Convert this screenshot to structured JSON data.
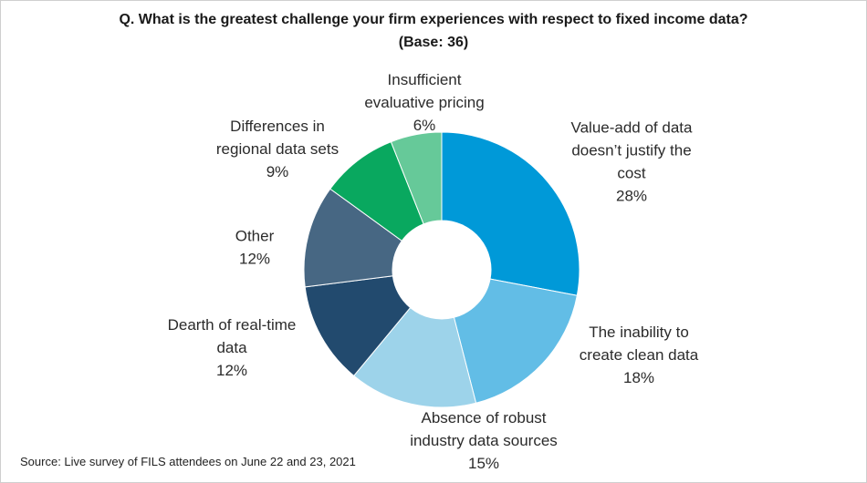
{
  "chart_data": {
    "type": "pie",
    "title": "Q. What is the greatest challenge your firm experiences with respect to fixed income data?",
    "subtitle": "(Base: 36)",
    "slices": [
      {
        "label_lines": [
          "Value-add of data",
          "doesn’t justify the",
          "cost"
        ],
        "pct_label": "28%",
        "value": 28,
        "color": "#0099d8"
      },
      {
        "label_lines": [
          "The inability to",
          "create clean data"
        ],
        "pct_label": "18%",
        "value": 18,
        "color": "#62bde6"
      },
      {
        "label_lines": [
          "Absence of robust",
          "industry data sources"
        ],
        "pct_label": "15%",
        "value": 15,
        "color": "#9dd3ea"
      },
      {
        "label_lines": [
          "Dearth of real-time",
          "data"
        ],
        "pct_label": "12%",
        "value": 12,
        "color": "#224a6e"
      },
      {
        "label_lines": [
          "Other"
        ],
        "pct_label": "12%",
        "value": 12,
        "color": "#476783"
      },
      {
        "label_lines": [
          "Differences in",
          "regional data sets"
        ],
        "pct_label": "9%",
        "value": 9,
        "color": "#09a85f"
      },
      {
        "label_lines": [
          "Insufficient",
          "evaluative pricing"
        ],
        "pct_label": "6%",
        "value": 6,
        "color": "#66c999"
      }
    ]
  },
  "footer": {
    "source": "Source: Live survey of FILS attendees on June 22 and 23, 2021"
  }
}
